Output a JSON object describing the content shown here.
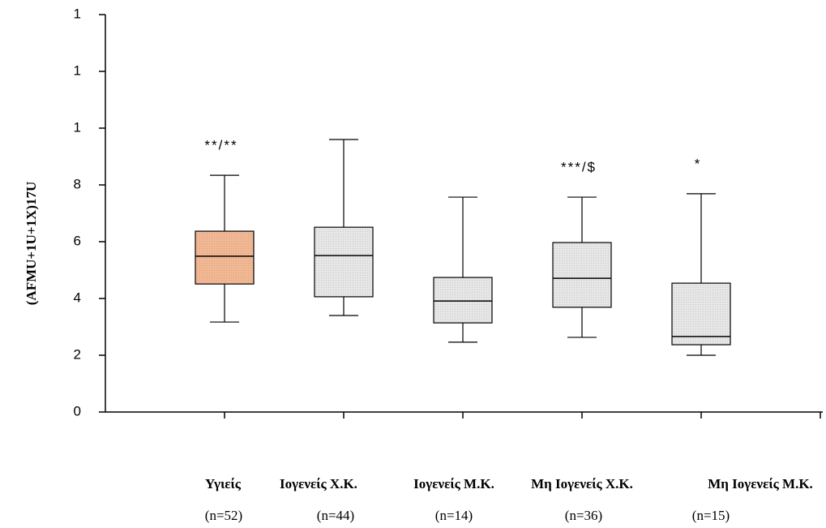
{
  "chart_data": {
    "type": "box",
    "ylabel": "(AFMU+1U+1X)17U",
    "categories": [
      "Υγιείς",
      "Ιογενείς Χ.Κ.",
      "Ιογενείς Μ.Κ.",
      "Μη Ιογενείς Χ.Κ.",
      "Μη Ιογενείς Μ.Κ."
    ],
    "n_labels": [
      "(n=52)",
      "(n=44)",
      "(n=14)",
      "(n=36)",
      "(n=15)"
    ],
    "annotations": [
      "**/**",
      null,
      null,
      "***/$",
      "*"
    ],
    "colors": [
      "#f2b894",
      "#e6e6e6",
      "#e6e6e6",
      "#e6e6e6",
      "#e6e6e6"
    ],
    "boxes": [
      {
        "whislo": 3.17,
        "q1": 4.51,
        "med": 5.49,
        "q3": 6.37,
        "whishi": 8.34
      },
      {
        "whislo": 3.4,
        "q1": 4.06,
        "med": 5.51,
        "q3": 6.51,
        "whishi": 9.6
      },
      {
        "whislo": 2.46,
        "q1": 3.14,
        "med": 3.91,
        "q3": 4.74,
        "whishi": 7.57
      },
      {
        "whislo": 2.63,
        "q1": 3.69,
        "med": 4.71,
        "q3": 5.97,
        "whishi": 7.57
      },
      {
        "whislo": 2.0,
        "q1": 2.37,
        "med": 2.66,
        "q3": 4.54,
        "whishi": 7.69
      }
    ],
    "ylim": [
      0,
      14
    ],
    "yticks": [
      0,
      2,
      4,
      6,
      8,
      {
        "value": 10,
        "label": "1"
      },
      {
        "value": 12,
        "label": "1"
      },
      {
        "value": 14,
        "label": "1"
      }
    ]
  }
}
